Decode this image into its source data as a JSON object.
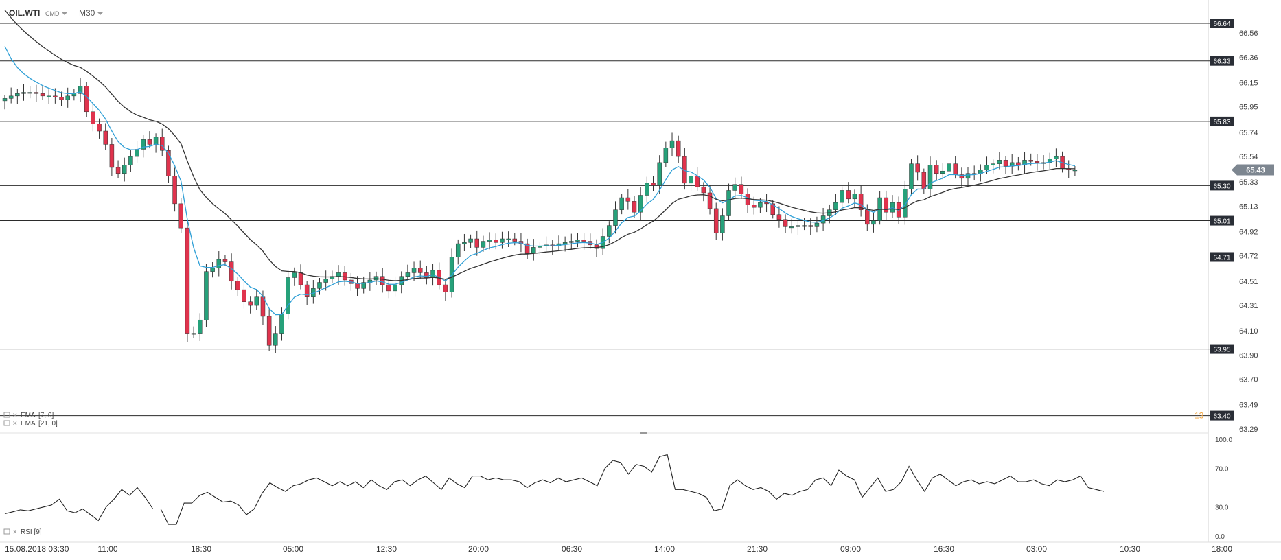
{
  "header": {
    "symbol": "OIL.WTI",
    "market": "CMD",
    "timeframe": "M30"
  },
  "indicators": [
    {
      "name": "EMA",
      "params": "[7, 0]",
      "color": "#2e9fd6"
    },
    {
      "name": "EMA",
      "params": "[21, 0]",
      "color": "#333333"
    }
  ],
  "current_price": "65.43",
  "countdown_label": "13",
  "colors": {
    "up": "#26a17a",
    "down": "#e0334d",
    "ema7": "#2e9fd6",
    "ema21": "#333333",
    "rsi": "#222222",
    "level_tag": "#2a2e36",
    "price_tag": "#7d8690"
  },
  "chart_data": [
    {
      "type": "candlestick",
      "title": "OIL.WTI CMD M30",
      "price_axis_ticks": [
        "66.56",
        "66.36",
        "66.15",
        "65.95",
        "65.74",
        "65.54",
        "65.33",
        "65.13",
        "64.92",
        "64.72",
        "64.51",
        "64.31",
        "64.10",
        "63.90",
        "63.70",
        "63.49",
        "63.29"
      ],
      "x_tick_labels": [
        "15.08.2018  03:30",
        "11:00",
        "18:30",
        "05:00",
        "12:30",
        "20:00",
        "06:30",
        "14:00",
        "21:30",
        "09:00",
        "16:30",
        "03:00",
        "10:30",
        "18:00"
      ],
      "ylim": [
        63.29,
        66.64
      ],
      "horizontal_levels": [
        "66.64",
        "66.33",
        "65.83",
        "65.30",
        "65.01",
        "64.71",
        "63.95",
        "63.40"
      ],
      "ohlc_close_estimates": [
        66.02,
        66.04,
        66.06,
        66.07,
        66.07,
        66.06,
        66.04,
        66.04,
        66.03,
        66.01,
        66.04,
        66.06,
        66.12,
        65.91,
        65.81,
        65.75,
        65.64,
        65.45,
        65.4,
        65.47,
        65.54,
        65.6,
        65.68,
        65.64,
        65.7,
        65.59,
        65.38,
        65.15,
        64.95,
        64.08,
        64.08,
        64.19,
        64.59,
        64.62,
        64.69,
        64.67,
        64.51,
        64.44,
        64.34,
        64.31,
        64.38,
        64.22,
        63.98,
        64.08,
        64.24,
        64.54,
        64.58,
        64.48,
        64.38,
        64.45,
        64.5,
        64.53,
        64.55,
        64.58,
        64.52,
        64.49,
        64.45,
        64.5,
        64.52,
        64.55,
        64.48,
        64.43,
        64.48,
        64.55,
        64.58,
        64.62,
        64.58,
        64.54,
        64.6,
        64.48,
        64.42,
        64.71,
        64.82,
        64.83,
        64.86,
        64.79,
        64.84,
        64.85,
        64.83,
        64.86,
        64.86,
        64.84,
        64.82,
        64.74,
        64.79,
        64.8,
        64.81,
        64.8,
        64.82,
        64.83,
        64.84,
        64.85,
        64.84,
        64.81,
        64.78,
        64.88,
        64.97,
        65.1,
        65.2,
        65.17,
        65.08,
        65.22,
        65.32,
        65.3,
        65.49,
        65.61,
        65.67,
        65.54,
        65.32,
        65.38,
        65.29,
        65.24,
        65.11,
        64.91,
        65.05,
        65.26,
        65.31,
        65.23,
        65.14,
        65.12,
        65.16,
        65.15,
        65.06,
        65.02,
        64.96,
        64.96,
        64.97,
        64.97,
        64.96,
        64.99,
        65.05,
        65.1,
        65.16,
        65.26,
        65.19,
        65.23,
        65.1,
        64.98,
        65.01,
        65.2,
        65.08,
        65.16,
        65.04,
        65.27,
        65.48,
        65.41,
        65.27,
        65.47,
        65.4,
        65.42,
        65.48,
        65.39,
        65.36,
        65.4,
        65.4,
        65.43,
        65.47,
        65.48,
        65.51,
        65.46,
        65.49,
        65.47,
        65.51,
        65.5,
        65.49,
        65.49,
        65.52,
        65.54,
        65.44,
        65.43,
        65.43
      ]
    },
    {
      "type": "line",
      "title": "RSI [9]",
      "series": [
        {
          "name": "RSI [9]",
          "values": [
            23,
            25,
            27,
            26,
            28,
            30,
            32,
            38,
            26,
            24,
            28,
            22,
            16,
            30,
            38,
            48,
            42,
            50,
            40,
            28,
            28,
            12,
            12,
            34,
            34,
            42,
            45,
            40,
            35,
            36,
            32,
            22,
            28,
            44,
            55,
            50,
            46,
            52,
            54,
            58,
            60,
            56,
            52,
            56,
            52,
            56,
            50,
            58,
            52,
            48,
            56,
            58,
            52,
            58,
            62,
            55,
            48,
            60,
            54,
            50,
            62,
            62,
            58,
            60,
            58,
            58,
            56,
            50,
            55,
            58,
            55,
            60,
            56,
            58,
            60,
            56,
            52,
            70,
            78,
            76,
            64,
            74,
            72,
            66,
            82,
            84,
            48,
            48,
            46,
            44,
            40,
            26,
            28,
            52,
            58,
            52,
            48,
            50,
            46,
            38,
            44,
            42,
            46,
            48,
            58,
            60,
            52,
            68,
            62,
            58,
            40,
            50,
            60,
            46,
            48,
            56,
            72,
            58,
            46,
            60,
            64,
            58,
            52,
            56,
            58,
            54,
            56,
            54,
            58,
            62,
            56,
            56,
            58,
            54,
            52,
            58,
            56,
            58,
            62,
            50,
            48,
            46
          ]
        }
      ],
      "ylim": [
        0,
        100
      ],
      "ytick_labels": [
        "100.0",
        "70.0",
        "30.0",
        "0.0"
      ]
    }
  ]
}
